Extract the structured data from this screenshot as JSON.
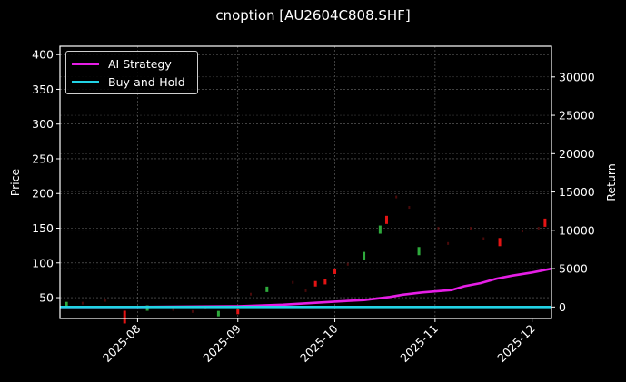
{
  "title": "cnoption [AU2604C808.SHF]",
  "colors": {
    "background": "#000000",
    "ai_strategy": "#e61ee6",
    "buy_and_hold": "#22d3e6",
    "candle_up": "#2eaa3c",
    "candle_down": "#e41414",
    "grid": "#6a6a6a"
  },
  "legend": {
    "items": [
      {
        "label": "AI Strategy",
        "color": "#e61ee6"
      },
      {
        "label": "Buy-and-Hold",
        "color": "#22d3e6"
      }
    ]
  },
  "axes": {
    "left_label": "Price",
    "right_label": "Return",
    "left_ticks": [
      "50",
      "100",
      "150",
      "200",
      "250",
      "300",
      "350",
      "400"
    ],
    "right_ticks": [
      "0",
      "5000",
      "10000",
      "15000",
      "20000",
      "25000",
      "30000"
    ],
    "x_ticks": [
      "2025-08",
      "2025-09",
      "2025-10",
      "2025-11",
      "2025-12"
    ]
  },
  "chart_data": {
    "type": "line",
    "title": "cnoption [AU2604C808.SHF]",
    "xlabel": "",
    "ylabel": "Price",
    "ylabel_right": "Return",
    "x_ticks": [
      "2025-08",
      "2025-09",
      "2025-10",
      "2025-11",
      "2025-12"
    ],
    "xlim": [
      "2025-07-08",
      "2025-12-07"
    ],
    "ylim": [
      20,
      412
    ],
    "ylim_right": [
      -1500,
      34000
    ],
    "grid": true,
    "legend_position": "upper left",
    "series": [
      {
        "name": "AI Strategy",
        "axis": "right",
        "x": [
          "2025-07-08",
          "2025-08-01",
          "2025-09-01",
          "2025-09-15",
          "2025-10-01",
          "2025-10-10",
          "2025-10-18",
          "2025-10-22",
          "2025-10-28",
          "2025-11-06",
          "2025-11-10",
          "2025-11-15",
          "2025-11-20",
          "2025-11-25",
          "2025-12-01",
          "2025-12-07"
        ],
        "values": [
          0,
          0,
          100,
          300,
          700,
          900,
          1300,
          1600,
          1900,
          2200,
          2700,
          3100,
          3700,
          4100,
          4500,
          5000
        ]
      },
      {
        "name": "Buy-and-Hold",
        "axis": "right",
        "x": [
          "2025-07-08",
          "2025-12-07"
        ],
        "values": [
          0,
          0
        ]
      },
      {
        "name": "Price (candlestick)",
        "axis": "left",
        "type": "candlestick",
        "x": [
          "2025-07-10",
          "2025-07-28",
          "2025-08-04",
          "2025-08-26",
          "2025-09-01",
          "2025-09-10",
          "2025-09-25",
          "2025-09-28",
          "2025-10-01",
          "2025-10-10",
          "2025-10-15",
          "2025-10-17",
          "2025-10-27",
          "2025-11-21",
          "2025-12-05"
        ],
        "close": [
          40,
          22,
          35,
          27,
          30,
          62,
          70,
          73,
          88,
          110,
          148,
          162,
          117,
          130,
          158
        ],
        "direction": [
          "up",
          "down",
          "up",
          "up",
          "down",
          "up",
          "down",
          "down",
          "down",
          "up",
          "up",
          "down",
          "up",
          "down",
          "down"
        ]
      }
    ]
  }
}
